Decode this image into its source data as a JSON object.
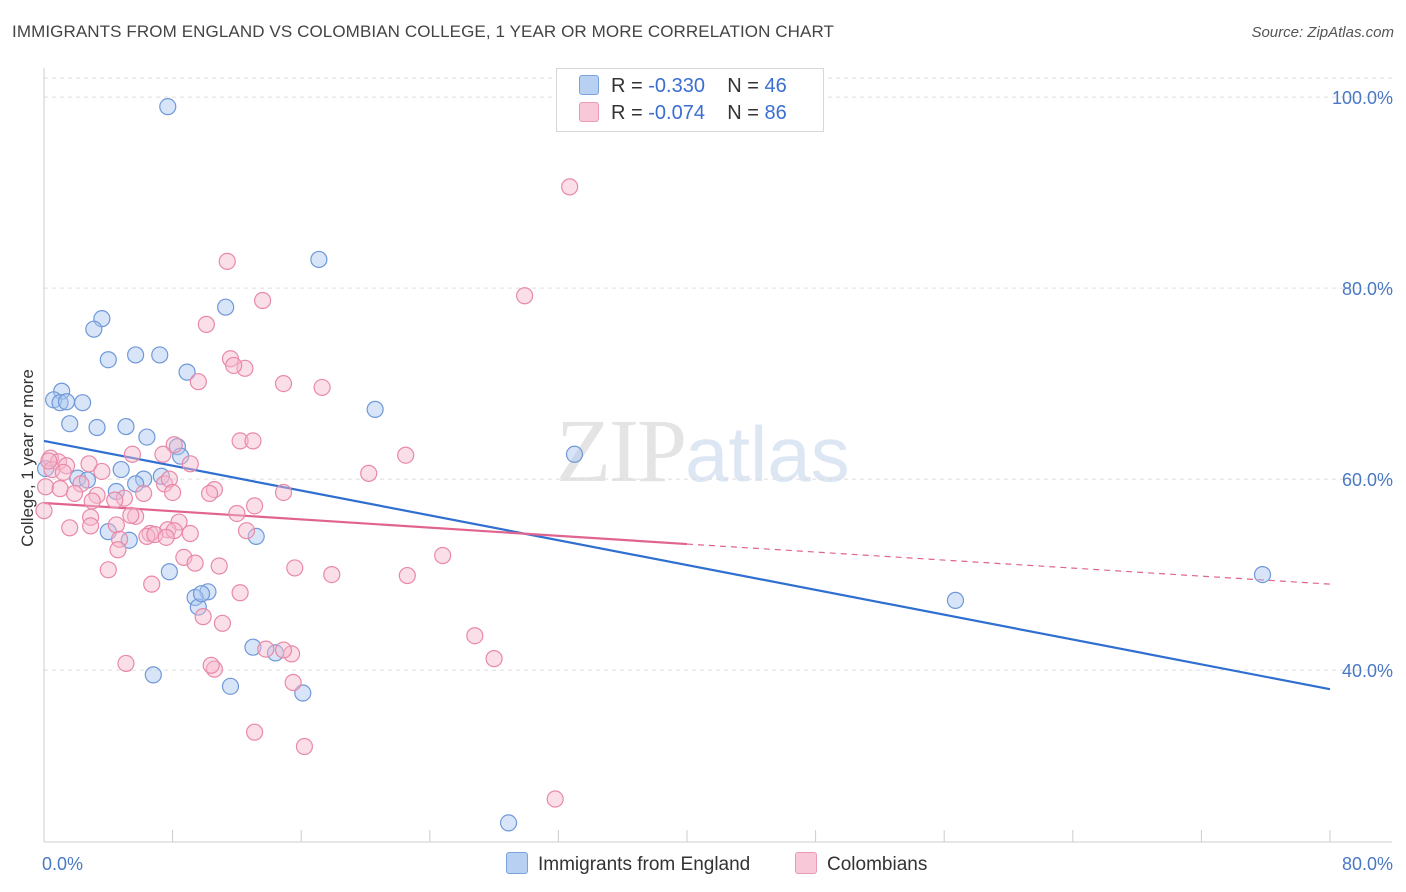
{
  "title": "IMMIGRANTS FROM ENGLAND VS COLOMBIAN COLLEGE, 1 YEAR OR MORE CORRELATION CHART",
  "source": "Source: ZipAtlas.com",
  "watermark": {
    "zip": "ZIP",
    "atlas": "atlas"
  },
  "legend": {
    "england": {
      "r_label": "R = ",
      "r_value": "-0.330",
      "n_label": "N = ",
      "n_value": "46"
    },
    "colombian": {
      "r_label": "R = ",
      "r_value": "-0.074",
      "n_label": "N = ",
      "n_value": "86"
    }
  },
  "colors": {
    "england_fill": "#a9c6ef",
    "england_stroke": "#6f98d8",
    "england_line": "#2f6fd0",
    "colombian_fill": "#f6b8cc",
    "colombian_stroke": "#e889a8",
    "colombian_line": "#e0648f"
  },
  "chart_data": {
    "type": "scatter",
    "title": "IMMIGRANTS FROM ENGLAND VS COLOMBIAN COLLEGE, 1 YEAR OR MORE CORRELATION CHART",
    "xlabel": "",
    "ylabel": "College, 1 year or more",
    "xlim": [
      0,
      80
    ],
    "ylim": [
      22,
      102
    ],
    "x_tick_labels": [
      "0.0%",
      "80.0%"
    ],
    "y_ticks": [
      40,
      60,
      80,
      100
    ],
    "y_tick_labels": [
      "40.0%",
      "60.0%",
      "80.0%",
      "100.0%"
    ],
    "legend_position": "bottom",
    "series": [
      {
        "name": "Immigrants from England",
        "R": -0.33,
        "N": 46,
        "trend": {
          "x0": 0,
          "y0": 64.0,
          "x1": 80,
          "y1": 38.0
        },
        "points": [
          [
            7.7,
            99.0
          ],
          [
            17.1,
            83.0
          ],
          [
            11.3,
            78.0
          ],
          [
            3.6,
            76.8
          ],
          [
            3.1,
            75.7
          ],
          [
            4.0,
            72.5
          ],
          [
            5.7,
            73.0
          ],
          [
            7.2,
            73.0
          ],
          [
            8.9,
            71.2
          ],
          [
            1.1,
            69.2
          ],
          [
            0.6,
            68.3
          ],
          [
            1.0,
            68.0
          ],
          [
            1.4,
            68.1
          ],
          [
            2.4,
            68.0
          ],
          [
            20.6,
            67.3
          ],
          [
            1.6,
            65.8
          ],
          [
            3.3,
            65.4
          ],
          [
            5.1,
            65.5
          ],
          [
            6.4,
            64.4
          ],
          [
            8.3,
            63.4
          ],
          [
            8.5,
            62.4
          ],
          [
            33.0,
            62.6
          ],
          [
            0.1,
            61.1
          ],
          [
            4.8,
            61.0
          ],
          [
            2.1,
            60.1
          ],
          [
            2.7,
            59.9
          ],
          [
            6.2,
            60.0
          ],
          [
            7.3,
            60.3
          ],
          [
            5.7,
            59.5
          ],
          [
            4.5,
            58.7
          ],
          [
            4.0,
            54.5
          ],
          [
            13.2,
            54.0
          ],
          [
            5.3,
            53.6
          ],
          [
            7.8,
            50.3
          ],
          [
            10.2,
            48.2
          ],
          [
            9.4,
            47.6
          ],
          [
            9.6,
            46.6
          ],
          [
            13.0,
            42.4
          ],
          [
            14.4,
            41.8
          ],
          [
            9.8,
            48.0
          ],
          [
            6.8,
            39.5
          ],
          [
            11.6,
            38.3
          ],
          [
            16.1,
            37.6
          ],
          [
            56.7,
            47.3
          ],
          [
            75.8,
            50.0
          ],
          [
            28.9,
            24.0
          ]
        ]
      },
      {
        "name": "Colombians",
        "R": -0.074,
        "N": 86,
        "trend": {
          "x0": 0,
          "y0": 57.5,
          "x1": 40,
          "y1": 53.2,
          "dash_x1": 80,
          "dash_y1": 49.0
        },
        "points": [
          [
            32.7,
            90.6
          ],
          [
            11.4,
            82.8
          ],
          [
            29.9,
            79.2
          ],
          [
            13.6,
            78.7
          ],
          [
            10.1,
            76.2
          ],
          [
            11.6,
            72.6
          ],
          [
            12.5,
            71.6
          ],
          [
            11.8,
            71.9
          ],
          [
            9.6,
            70.2
          ],
          [
            14.9,
            70.0
          ],
          [
            17.3,
            69.6
          ],
          [
            8.1,
            63.6
          ],
          [
            12.2,
            64.0
          ],
          [
            13.0,
            64.0
          ],
          [
            22.5,
            62.5
          ],
          [
            0.4,
            62.2
          ],
          [
            0.9,
            61.8
          ],
          [
            2.8,
            61.6
          ],
          [
            5.5,
            62.6
          ],
          [
            7.4,
            62.6
          ],
          [
            9.1,
            61.6
          ],
          [
            0.5,
            61.0
          ],
          [
            1.4,
            61.4
          ],
          [
            3.6,
            60.8
          ],
          [
            20.2,
            60.6
          ],
          [
            0.1,
            59.2
          ],
          [
            1.0,
            59.0
          ],
          [
            2.3,
            59.5
          ],
          [
            7.5,
            59.5
          ],
          [
            7.8,
            60.0
          ],
          [
            10.6,
            58.9
          ],
          [
            14.9,
            58.6
          ],
          [
            1.9,
            58.5
          ],
          [
            3.3,
            58.3
          ],
          [
            6.2,
            58.5
          ],
          [
            5.0,
            58.0
          ],
          [
            4.4,
            57.8
          ],
          [
            8.0,
            58.6
          ],
          [
            10.3,
            58.5
          ],
          [
            13.1,
            57.2
          ],
          [
            0.0,
            56.7
          ],
          [
            2.9,
            56.0
          ],
          [
            5.7,
            56.1
          ],
          [
            8.4,
            55.5
          ],
          [
            1.6,
            54.9
          ],
          [
            2.9,
            55.1
          ],
          [
            4.5,
            55.2
          ],
          [
            7.7,
            54.7
          ],
          [
            8.1,
            54.6
          ],
          [
            12.6,
            54.6
          ],
          [
            6.6,
            54.3
          ],
          [
            9.1,
            54.3
          ],
          [
            4.7,
            53.7
          ],
          [
            6.4,
            54.0
          ],
          [
            4.6,
            52.6
          ],
          [
            8.7,
            51.8
          ],
          [
            9.4,
            51.2
          ],
          [
            10.9,
            50.9
          ],
          [
            15.6,
            50.7
          ],
          [
            17.9,
            50.0
          ],
          [
            22.6,
            49.9
          ],
          [
            24.8,
            52.0
          ],
          [
            4.0,
            50.5
          ],
          [
            6.7,
            49.0
          ],
          [
            12.2,
            48.1
          ],
          [
            9.9,
            45.6
          ],
          [
            11.1,
            44.9
          ],
          [
            26.8,
            43.6
          ],
          [
            13.8,
            42.2
          ],
          [
            15.4,
            41.7
          ],
          [
            14.9,
            42.1
          ],
          [
            28.0,
            41.2
          ],
          [
            5.1,
            40.7
          ],
          [
            10.6,
            40.1
          ],
          [
            10.4,
            40.5
          ],
          [
            15.5,
            38.7
          ],
          [
            13.1,
            33.5
          ],
          [
            16.2,
            32.0
          ],
          [
            31.8,
            26.5
          ],
          [
            0.3,
            61.9
          ],
          [
            1.2,
            60.7
          ],
          [
            3.0,
            57.7
          ],
          [
            6.9,
            54.2
          ],
          [
            12.0,
            56.4
          ],
          [
            7.6,
            53.9
          ],
          [
            5.4,
            56.2
          ]
        ]
      }
    ]
  },
  "bottom_legend": [
    "Immigrants from England",
    "Colombians"
  ]
}
